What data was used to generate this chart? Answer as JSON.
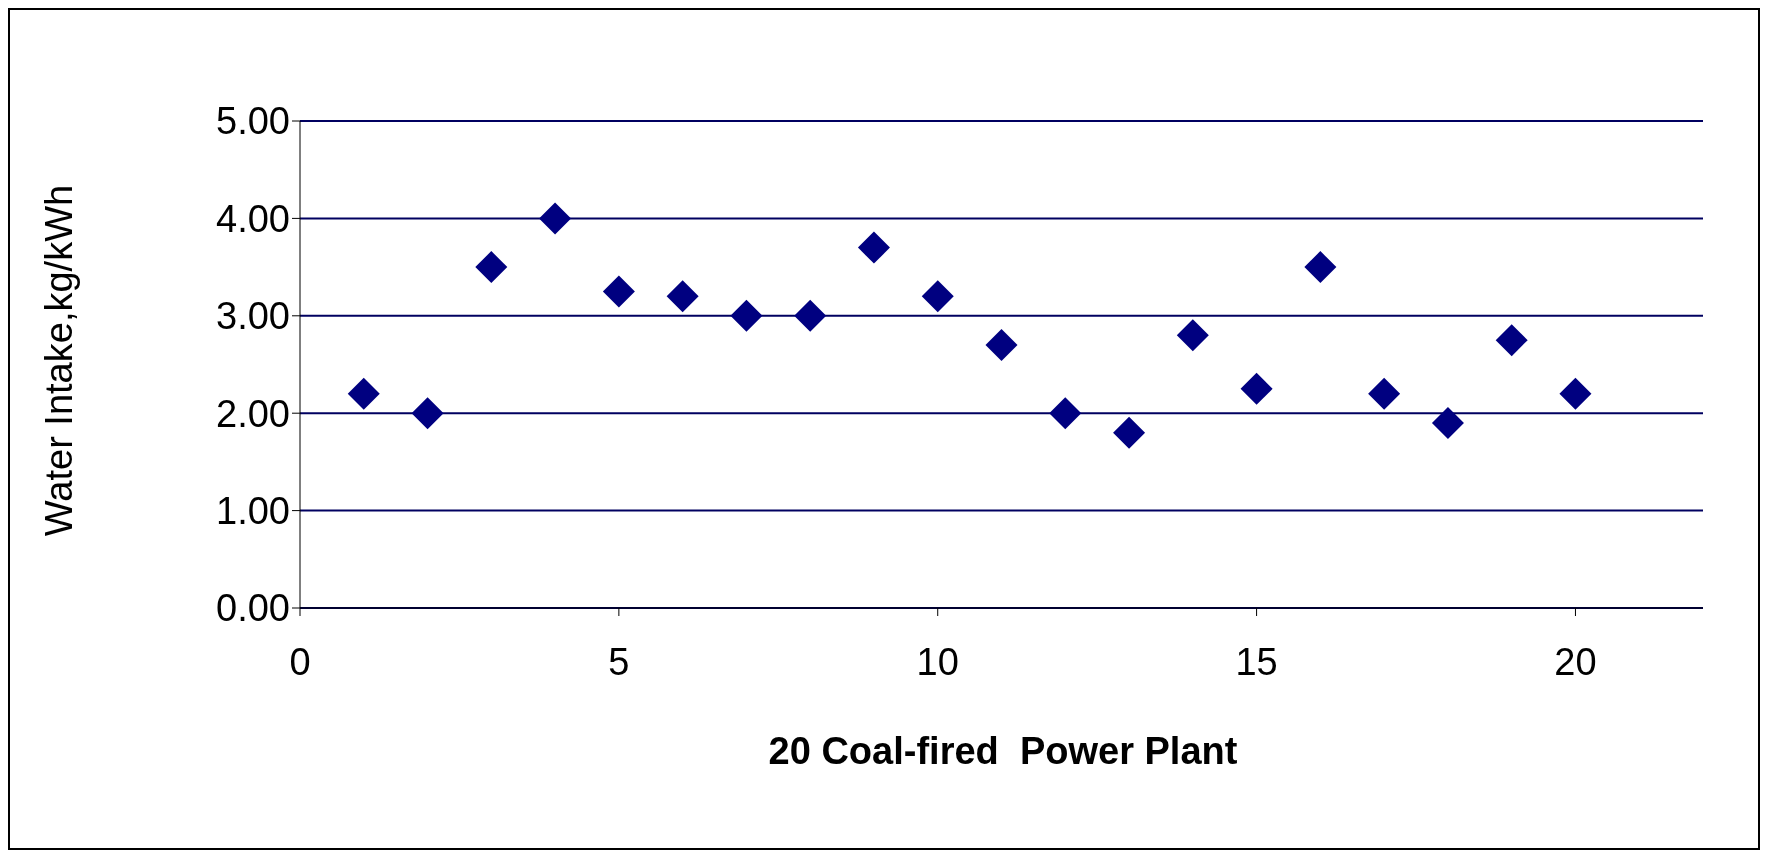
{
  "chart_data": {
    "type": "scatter",
    "xlabel": "20 Coal-fired  Power Plant",
    "ylabel": "Water Intake,kg/kWh",
    "x": [
      1,
      2,
      3,
      4,
      5,
      6,
      7,
      8,
      9,
      10,
      11,
      12,
      13,
      14,
      15,
      16,
      17,
      18,
      19,
      20
    ],
    "series": [
      {
        "color": "#000080",
        "values": [
          2.2,
          2.0,
          3.5,
          4.0,
          3.25,
          3.2,
          3.0,
          3.0,
          3.7,
          3.2,
          2.7,
          2.0,
          1.8,
          2.8,
          2.25,
          3.5,
          2.2,
          1.9,
          2.75,
          2.2
        ]
      }
    ],
    "xlim": [
      0,
      22
    ],
    "xticks": [
      0,
      5,
      10,
      15,
      20
    ],
    "ylim": [
      0,
      5
    ],
    "yticks": [
      {
        "value": 0,
        "label": "0.00"
      },
      {
        "value": 1,
        "label": "1.00"
      },
      {
        "value": 2,
        "label": "2.00"
      },
      {
        "value": 3,
        "label": "3.00"
      },
      {
        "value": 4,
        "label": "4.00"
      },
      {
        "value": 5,
        "label": "5.00"
      }
    ],
    "grid": "y",
    "marker": "diamond",
    "legend": false
  }
}
